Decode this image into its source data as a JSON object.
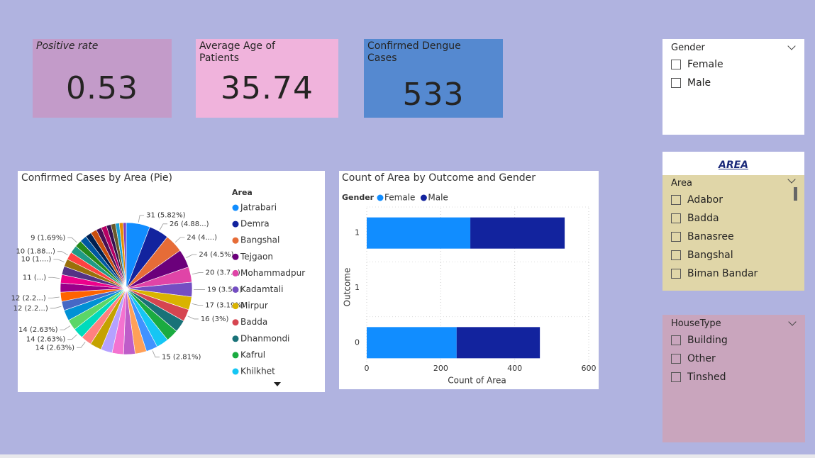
{
  "cards": [
    {
      "title": "Positive rate",
      "value": 0.53,
      "color": "#c39bc9"
    },
    {
      "title": "Average Age of Patients",
      "value": 35.74,
      "color": "#f0b3dc"
    },
    {
      "title": "Confirmed Dengue Cases",
      "value": 533,
      "color": "#5589d0"
    }
  ],
  "slicers": [
    {
      "title": "Gender",
      "items": [
        "Female",
        "Male"
      ],
      "color": "#ffffff"
    },
    {
      "title": "AREA",
      "header": "Area",
      "items": [
        "Adabor",
        "Badda",
        "Banasree",
        "Bangshal",
        "Biman Bandar"
      ],
      "color": "#e0d6a8"
    },
    {
      "title": "HouseType",
      "items": [
        "Building",
        "Other",
        "Tinshed"
      ],
      "color": "#c9a5bd"
    }
  ],
  "chart_data": [
    {
      "type": "pie",
      "title": "Confirmed Cases by Area (Pie)",
      "legend_title": "Area",
      "categories": [
        "Jatrabari",
        "Demra",
        "Bangshal",
        "Tejgaon",
        "Mohammadpur",
        "Kadamtali",
        "Mirpur",
        "Badda",
        "Dhanmondi",
        "Kafrul",
        "Khilkhet",
        null,
        null,
        null,
        null,
        null,
        null,
        null,
        null,
        null,
        null,
        null,
        null,
        null,
        null,
        null,
        null,
        null,
        null,
        null,
        null,
        null,
        null,
        null,
        null,
        null,
        null,
        null,
        null,
        null
      ],
      "values": [
        31,
        26,
        24,
        24,
        20,
        19,
        17,
        16,
        16,
        16,
        16,
        15,
        15,
        15,
        15,
        15,
        15,
        14,
        14,
        14,
        14,
        12,
        12,
        12,
        11,
        11,
        10,
        10,
        10,
        9,
        9,
        8,
        8,
        7,
        7,
        6,
        6,
        5,
        5,
        4
      ],
      "value_labels": [
        "31 (5.82%)",
        "26 (4.88...)",
        "24 (4....)",
        "24 (4.5%)",
        "20 (3.7...)",
        "19 (3.5...)",
        "17 (3.19%)",
        "16 (3%)",
        null,
        null,
        null,
        "15 (2.81%)",
        null,
        null,
        null,
        null,
        null,
        "14 (2.63%)",
        "14 (2.63%)",
        "14 (2.63%)",
        null,
        "12 (2.2...)",
        "12 (2.2...)",
        null,
        "11 (...)",
        null,
        "10 (1....)",
        "10 (1.88...)",
        null,
        "9 (1.69%)",
        null,
        null,
        null,
        null,
        null,
        null,
        null,
        null,
        null,
        null
      ],
      "colors": [
        "#118DFF",
        "#12239E",
        "#E66C37",
        "#6B007B",
        "#E044A7",
        "#744EC2",
        "#D9B300",
        "#D64550",
        "#197278",
        "#1AAB40",
        "#15C6F4",
        "#4092FF",
        "#FFA058",
        "#BE5DC9",
        "#F472D0",
        "#B5A1FF",
        "#C4A200",
        "#FF8080",
        "#00DBBC",
        "#5BD667",
        "#0091D5",
        "#4668C5",
        "#FF6300",
        "#99008A",
        "#EC008C",
        "#533285",
        "#99700A",
        "#FF4141",
        "#1F9A85",
        "#25891C",
        "#0057A2",
        "#002050",
        "#C94F0F",
        "#450F54",
        "#B60064",
        "#34124F",
        "#6A5A29",
        "#1BA1D2",
        "#E68F00",
        "#7F3FBF"
      ]
    },
    {
      "type": "bar",
      "orientation": "horizontal",
      "stacked": true,
      "title": "Count of Area by Outcome and Gender",
      "legend_title": "Gender",
      "categories": [
        "1",
        "1",
        "0"
      ],
      "series": [
        {
          "name": "Female",
          "color": "#118DFF",
          "values": [
            280,
            null,
            243
          ]
        },
        {
          "name": "Male",
          "color": "#12239E",
          "values": [
            255,
            null,
            225
          ]
        }
      ],
      "xlim": [
        0,
        600
      ],
      "xticks": [
        0,
        200,
        400,
        600
      ],
      "xlabel": "Count of Area",
      "ylabel": "Outcome",
      "grid": true
    }
  ]
}
